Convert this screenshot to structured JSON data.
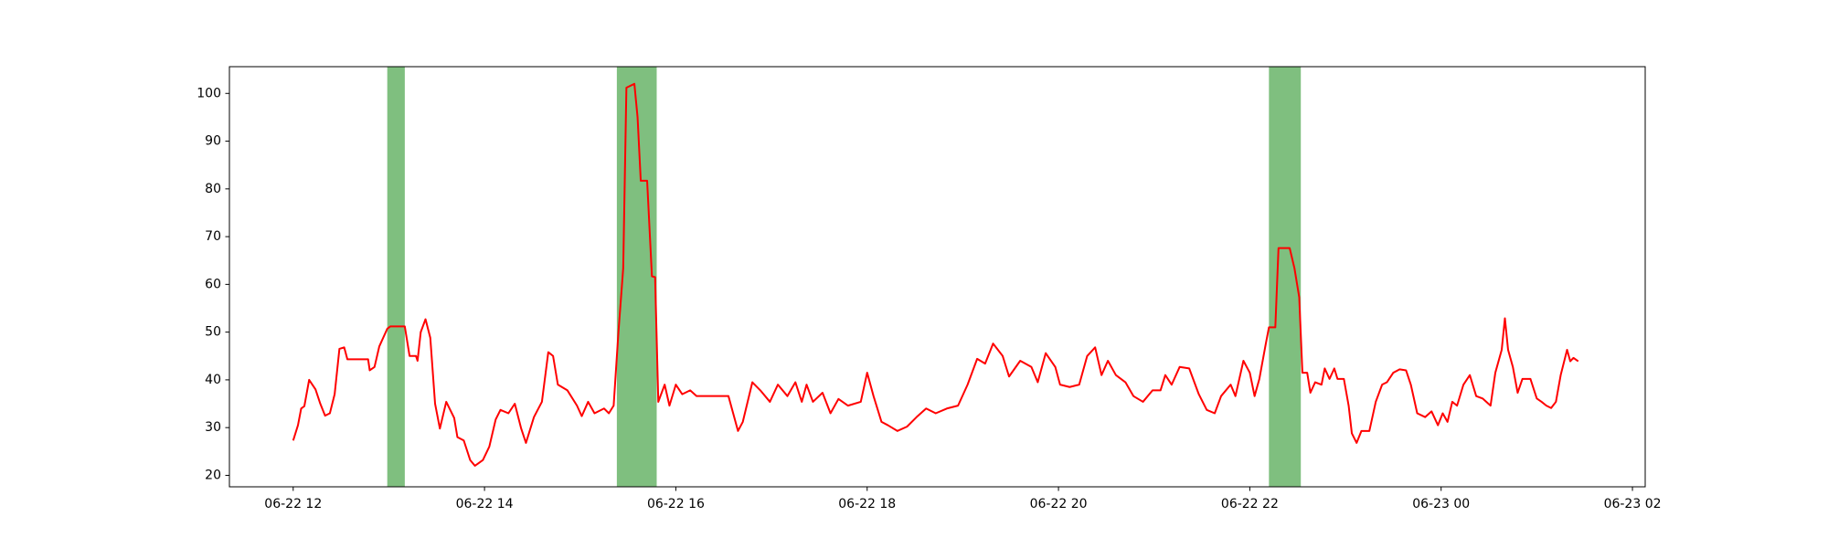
{
  "chart_data": {
    "type": "line",
    "x": [
      "06-22 12:00",
      "06-22 12:03",
      "06-22 12:05",
      "06-22 12:07",
      "06-22 12:10",
      "06-22 12:14",
      "06-22 12:17",
      "06-22 12:20",
      "06-22 12:23",
      "06-22 12:26",
      "06-22 12:29",
      "06-22 12:32",
      "06-22 12:34",
      "06-22 12:47",
      "06-22 12:48",
      "06-22 12:51",
      "06-22 12:54",
      "06-22 12:59",
      "06-22 13:01",
      "06-22 13:10",
      "06-22 13:13",
      "06-22 13:17",
      "06-22 13:18",
      "06-22 13:20",
      "06-22 13:23",
      "06-22 13:26",
      "06-22 13:29",
      "06-22 13:32",
      "06-22 13:36",
      "06-22 13:41",
      "06-22 13:43",
      "06-22 13:47",
      "06-22 13:51",
      "06-22 13:54",
      "06-22 13:59",
      "06-22 14:03",
      "06-22 14:07",
      "06-22 14:10",
      "06-22 14:15",
      "06-22 14:19",
      "06-22 14:23",
      "06-22 14:26",
      "06-22 14:31",
      "06-22 14:36",
      "06-22 14:40",
      "06-22 14:43",
      "06-22 14:46",
      "06-22 14:52",
      "06-22 14:58",
      "06-22 15:01",
      "06-22 15:05",
      "06-22 15:09",
      "06-22 15:15",
      "06-22 15:18",
      "06-22 15:21",
      "06-22 15:24",
      "06-22 15:27",
      "06-22 15:29",
      "06-22 15:34",
      "06-22 15:36",
      "06-22 15:38",
      "06-22 15:42",
      "06-22 15:45",
      "06-22 15:47",
      "06-22 15:49",
      "06-22 15:53",
      "06-22 15:56",
      "06-22 16:00",
      "06-22 16:04",
      "06-22 16:09",
      "06-22 16:13",
      "06-22 16:33",
      "06-22 16:39",
      "06-22 16:42",
      "06-22 16:48",
      "06-22 16:53",
      "06-22 16:59",
      "06-22 17:04",
      "06-22 17:10",
      "06-22 17:15",
      "06-22 17:19",
      "06-22 17:22",
      "06-22 17:26",
      "06-22 17:32",
      "06-22 17:37",
      "06-22 17:42",
      "06-22 17:48",
      "06-22 17:56",
      "06-22 18:00",
      "06-22 18:04",
      "06-22 18:09",
      "06-22 18:13",
      "06-22 18:19",
      "06-22 18:25",
      "06-22 18:31",
      "06-22 18:37",
      "06-22 18:43",
      "06-22 18:50",
      "06-22 18:57",
      "06-22 19:03",
      "06-22 19:09",
      "06-22 19:14",
      "06-22 19:19",
      "06-22 19:25",
      "06-22 19:29",
      "06-22 19:36",
      "06-22 19:43",
      "06-22 19:47",
      "06-22 19:52",
      "06-22 19:58",
      "06-22 20:01",
      "06-22 20:07",
      "06-22 20:13",
      "06-22 20:18",
      "06-22 20:23",
      "06-22 20:27",
      "06-22 20:31",
      "06-22 20:36",
      "06-22 20:42",
      "06-22 20:47",
      "06-22 20:53",
      "06-22 20:59",
      "06-22 21:04",
      "06-22 21:07",
      "06-22 21:11",
      "06-22 21:16",
      "06-22 21:22",
      "06-22 21:28",
      "06-22 21:33",
      "06-22 21:38",
      "06-22 21:42",
      "06-22 21:48",
      "06-22 21:51",
      "06-22 21:56",
      "06-22 22:00",
      "06-22 22:03",
      "06-22 22:06",
      "06-22 22:10",
      "06-22 22:12",
      "06-22 22:16",
      "06-22 22:18",
      "06-22 22:25",
      "06-22 22:28",
      "06-22 22:31",
      "06-22 22:33",
      "06-22 22:36",
      "06-22 22:38",
      "06-22 22:41",
      "06-22 22:45",
      "06-22 22:47",
      "06-22 22:50",
      "06-22 22:53",
      "06-22 22:55",
      "06-22 22:59",
      "06-22 23:02",
      "06-22 23:04",
      "06-22 23:07",
      "06-22 23:10",
      "06-22 23:15",
      "06-22 23:19",
      "06-22 23:23",
      "06-22 23:26",
      "06-22 23:30",
      "06-22 23:34",
      "06-22 23:38",
      "06-22 23:41",
      "06-22 23:45",
      "06-22 23:50",
      "06-22 23:54",
      "06-22 23:58",
      "06-23 00:01",
      "06-23 00:04",
      "06-23 00:07",
      "06-23 00:10",
      "06-23 00:14",
      "06-23 00:18",
      "06-23 00:22",
      "06-23 00:26",
      "06-23 00:31",
      "06-23 00:34",
      "06-23 00:38",
      "06-23 00:40",
      "06-23 00:42",
      "06-23 00:45",
      "06-23 00:48",
      "06-23 00:51",
      "06-23 00:56",
      "06-23 01:00",
      "06-23 01:03",
      "06-23 01:06",
      "06-23 01:09",
      "06-23 01:12",
      "06-23 01:15",
      "06-23 01:19",
      "06-23 01:21",
      "06-23 01:23",
      "06-23 01:26"
    ],
    "series": [
      {
        "color": "#ff0000",
        "values": [
          27.3,
          30.5,
          34,
          34.5,
          40,
          38,
          35,
          32.5,
          33,
          37,
          46.5,
          46.8,
          44.3,
          44.3,
          42,
          42.7,
          47,
          50.7,
          51.2,
          51.2,
          45,
          45,
          44,
          50,
          52.7,
          48.8,
          35,
          29.8,
          35.4,
          32,
          28,
          27.3,
          23.2,
          22,
          23.2,
          26,
          31.7,
          33.7,
          33,
          35,
          29.8,
          26.8,
          32.2,
          35.4,
          45.8,
          45,
          39,
          37.8,
          34.6,
          32.4,
          35.4,
          33,
          34,
          33,
          34.6,
          50,
          63.4,
          101.2,
          102,
          95,
          81.7,
          81.7,
          61.7,
          61.5,
          35.4,
          39,
          34.6,
          39,
          37,
          37.8,
          36.6,
          36.6,
          29.3,
          31.2,
          39.5,
          37.8,
          35.4,
          39,
          36.6,
          39.5,
          35.4,
          39,
          35.4,
          37.3,
          33,
          36,
          34.6,
          35.4,
          41.5,
          36.6,
          31.2,
          30.5,
          29.3,
          30.2,
          32.2,
          34,
          33,
          34,
          34.6,
          39,
          44.4,
          43.4,
          47.6,
          45,
          40.7,
          44,
          42.7,
          39.5,
          45.6,
          42.7,
          39,
          38.5,
          39,
          45,
          46.8,
          41,
          44,
          41,
          39.5,
          36.6,
          35.4,
          37.8,
          37.8,
          41,
          39,
          42.7,
          42.4,
          37,
          33.7,
          33,
          36.6,
          39,
          36.6,
          44,
          41.5,
          36.6,
          40.2,
          47.5,
          51,
          51,
          67.6,
          67.6,
          63.4,
          57.3,
          41.5,
          41.5,
          37.3,
          39.5,
          39,
          42.4,
          40.2,
          42.4,
          40.2,
          40.2,
          34.6,
          28.8,
          26.8,
          29.3,
          29.3,
          35.4,
          39,
          39.5,
          41.5,
          42.2,
          42,
          39,
          33,
          32.2,
          33.4,
          30.5,
          33,
          31.2,
          35.4,
          34.6,
          39,
          41,
          36.6,
          36.1,
          34.6,
          41.5,
          46.3,
          52.9,
          46.3,
          42.7,
          37.3,
          40.2,
          40.2,
          36.1,
          35.4,
          34.6,
          34.1,
          35.4,
          41,
          46.3,
          43.9,
          44.6,
          43.9
        ]
      }
    ],
    "spans": [
      {
        "start": "06-22 12:59",
        "end": "06-22 13:10"
      },
      {
        "start": "06-22 15:23",
        "end": "06-22 15:48"
      },
      {
        "start": "06-22 22:12",
        "end": "06-22 22:32"
      }
    ],
    "span_color": "#008000",
    "xlim": [
      "06-22 11:20",
      "06-23 02:08"
    ],
    "xticks": [
      {
        "value": "06-22 12:00",
        "label": "06-22 12"
      },
      {
        "value": "06-22 14:00",
        "label": "06-22 14"
      },
      {
        "value": "06-22 16:00",
        "label": "06-22 16"
      },
      {
        "value": "06-22 18:00",
        "label": "06-22 18"
      },
      {
        "value": "06-22 20:00",
        "label": "06-22 20"
      },
      {
        "value": "06-22 22:00",
        "label": "06-22 22"
      },
      {
        "value": "06-23 00:00",
        "label": "06-23 00"
      },
      {
        "value": "06-23 02:00",
        "label": "06-23 02"
      }
    ],
    "ylim": [
      17.6,
      105.6
    ],
    "yticks": [
      20,
      30,
      40,
      50,
      60,
      70,
      80,
      90,
      100
    ]
  }
}
